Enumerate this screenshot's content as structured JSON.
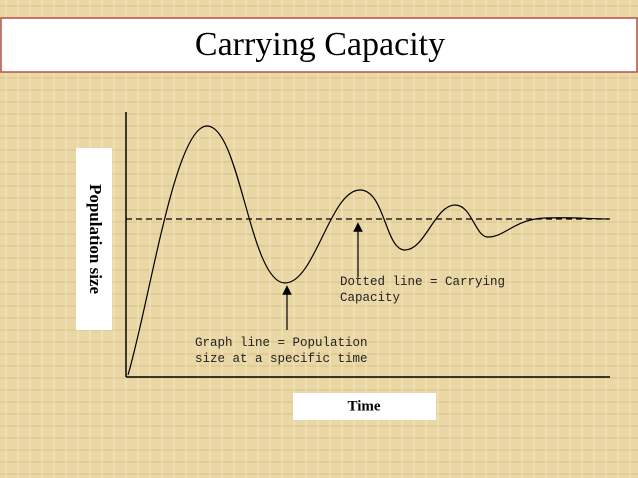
{
  "title": "Carrying Capacity",
  "y_axis_label": "Population size",
  "x_axis_label": "Time",
  "annotations": [
    {
      "lines": [
        "Dotted line = Carrying",
        "Capacity"
      ]
    },
    {
      "lines": [
        "Graph line = Population",
        "size at a specific time"
      ]
    }
  ]
}
